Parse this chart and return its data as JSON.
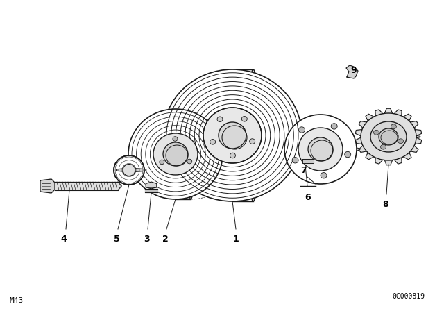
{
  "bg_color": "#ffffff",
  "line_color": "#1a1a1a",
  "line_width": 1.0,
  "figsize": [
    6.4,
    4.48
  ],
  "dpi": 100,
  "bottom_left_text": "M43",
  "bottom_right_text": "0C000819",
  "text_color": "#000000"
}
